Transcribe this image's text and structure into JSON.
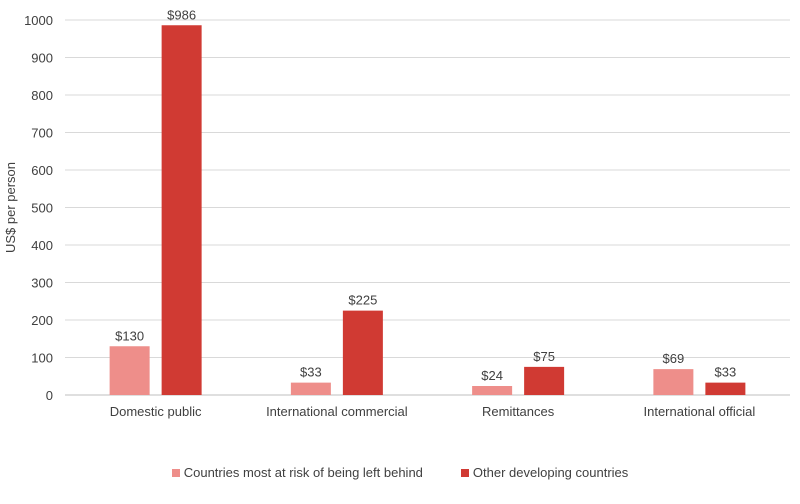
{
  "chart_data": {
    "type": "bar",
    "title": "",
    "xlabel": "",
    "ylabel": "US$ per person",
    "ylim": [
      0,
      1000
    ],
    "yticks": [
      0,
      100,
      200,
      300,
      400,
      500,
      600,
      700,
      800,
      900,
      1000
    ],
    "grid": true,
    "legend_position": "bottom",
    "categories": [
      "Domestic public",
      "International commercial",
      "Remittances",
      "International official"
    ],
    "series": [
      {
        "name": "Countries most at risk of being left behind",
        "color": "#EE8E8A",
        "values": [
          130,
          33,
          24,
          69
        ],
        "labels": [
          "$130",
          "$33",
          "$24",
          "$69"
        ]
      },
      {
        "name": "Other developing countries",
        "color": "#D03A33",
        "values": [
          986,
          225,
          75,
          33
        ],
        "labels": [
          "$986",
          "$225",
          "$75",
          "$33"
        ]
      }
    ]
  }
}
